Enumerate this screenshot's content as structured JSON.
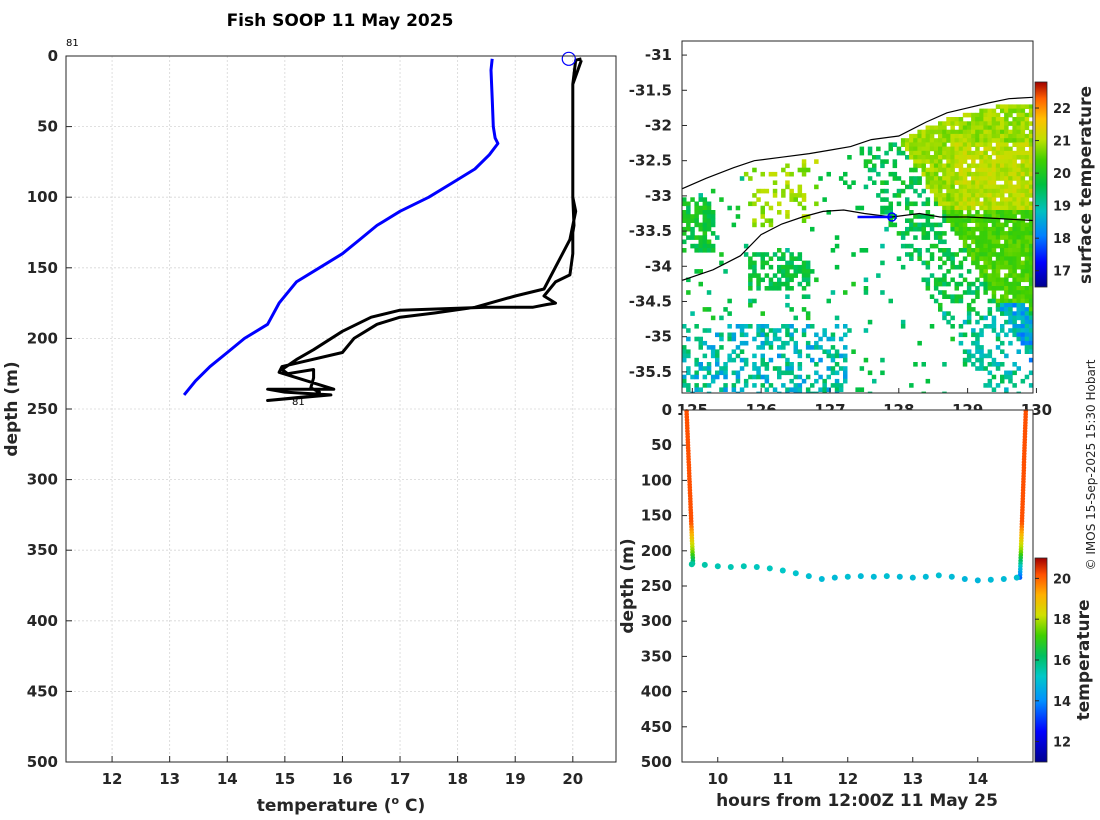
{
  "title": "Fish SOOP 11 May 2025",
  "credit": "© IMOS 15-Sep-2025 15:30 Hobart",
  "chart_data": [
    {
      "type": "line",
      "name": "profile",
      "xlabel": "temperature (",
      "xlabel_sup": "o",
      "xlabel_end": " C)",
      "ylabel": "depth (m)",
      "xlim": [
        11.2,
        20.75
      ],
      "ylim": [
        500,
        0
      ],
      "xticks": [
        "12",
        "13",
        "14",
        "15",
        "16",
        "17",
        "18",
        "19",
        "20"
      ],
      "yticks": [
        "0",
        "50",
        "100",
        "150",
        "200",
        "250",
        "300",
        "350",
        "400",
        "450",
        "500"
      ],
      "grid": true,
      "start_label": "81",
      "end_label": "81",
      "series": [
        {
          "name": "climatology",
          "color": "#0000ff",
          "x": [
            18.6,
            18.58,
            18.6,
            18.62,
            18.65,
            18.7,
            18.55,
            18.3,
            17.9,
            17.5,
            17.0,
            16.6,
            16.3,
            16.0,
            15.6,
            15.2,
            14.9,
            14.7,
            14.3,
            14.0,
            13.7,
            13.45,
            13.25
          ],
          "y": [
            2,
            10,
            30,
            50,
            58,
            62,
            70,
            80,
            90,
            100,
            110,
            120,
            130,
            140,
            150,
            160,
            175,
            190,
            200,
            210,
            220,
            230,
            240
          ]
        },
        {
          "name": "tow",
          "color": "#000000",
          "x": [
            20.15,
            20.05,
            20.0,
            20.0,
            20.0,
            20.02,
            20.0,
            20.0,
            20.0,
            19.95,
            19.7,
            19.5,
            19.7,
            19.55,
            19.3,
            18.5,
            17.0,
            16.5,
            16.0,
            15.5,
            15.2,
            14.95,
            15.05,
            15.5,
            15.5,
            15.45,
            15.6,
            15.45,
            14.7,
            15.8,
            15.0,
            14.7,
            15.85,
            14.9,
            14.95,
            16.0,
            16.2,
            16.6,
            17.0,
            17.6,
            18.3,
            19.0,
            19.5,
            19.95,
            20.05,
            20.0,
            20.0,
            20.0,
            20.0,
            20.15
          ],
          "y": [
            2,
            3,
            20,
            60,
            100,
            120,
            125,
            130,
            140,
            155,
            160,
            170,
            175,
            176,
            178,
            178,
            180,
            185,
            195,
            208,
            215,
            222,
            225,
            222,
            228,
            235,
            238,
            241,
            244,
            240,
            238,
            236,
            236,
            224,
            220,
            210,
            200,
            190,
            185,
            182,
            178,
            170,
            165,
            130,
            110,
            100,
            80,
            50,
            20,
            3
          ]
        }
      ],
      "marker": {
        "x": 19.93,
        "y": 2
      }
    },
    {
      "type": "heatmap",
      "name": "sst_map",
      "xlim": [
        124.85,
        129.95
      ],
      "ylim": [
        -35.8,
        -30.8
      ],
      "yticks": [
        "-31",
        "-31.5",
        "-32",
        "-32.5",
        "-33",
        "-33.5",
        "-34",
        "-34.5",
        "-35",
        "-35.5"
      ],
      "xticks": [
        "125",
        "126",
        "127",
        "128",
        "129",
        "130"
      ],
      "coast": {
        "lon": [
          124.85,
          125.2,
          125.6,
          125.9,
          126.3,
          126.7,
          127.0,
          127.3,
          127.6,
          128.0,
          128.4,
          128.7,
          129.0,
          129.3,
          129.6,
          129.95
        ],
        "lat": [
          -32.9,
          -32.75,
          -32.6,
          -32.5,
          -32.45,
          -32.4,
          -32.35,
          -32.3,
          -32.2,
          -32.15,
          -31.95,
          -31.82,
          -31.75,
          -31.68,
          -31.62,
          -31.6
        ]
      },
      "shelf": {
        "lon": [
          124.85,
          125.3,
          125.7,
          126.0,
          126.3,
          126.6,
          126.9,
          127.2,
          127.5,
          127.9,
          128.3,
          128.6,
          129.0,
          129.4,
          129.95
        ],
        "lat": [
          -34.2,
          -34.05,
          -33.85,
          -33.55,
          -33.4,
          -33.3,
          -33.22,
          -33.2,
          -33.25,
          -33.3,
          -33.25,
          -33.3,
          -33.3,
          -33.32,
          -33.35
        ]
      },
      "track": {
        "lon": [
          127.4,
          127.9
        ],
        "lat": [
          -33.3,
          -33.3
        ]
      },
      "track_marker": {
        "lon": 127.9,
        "lat": -33.3
      },
      "colorbar": {
        "label": "surface temperature",
        "ticks": [
          "17",
          "18",
          "19",
          "20",
          "21",
          "22"
        ],
        "range": [
          16.5,
          22.8
        ]
      }
    },
    {
      "type": "scatter",
      "name": "section",
      "xlabel": "hours from 12:00Z 11 May 25",
      "ylabel": "depth (m)",
      "xlim": [
        9.45,
        14.85
      ],
      "ylim": [
        500,
        0
      ],
      "xticks": [
        "10",
        "11",
        "12",
        "13",
        "14"
      ],
      "yticks": [
        "0",
        "50",
        "100",
        "150",
        "200",
        "250",
        "300",
        "350",
        "400",
        "450",
        "500"
      ],
      "colorbar": {
        "label": "temperature",
        "ticks": [
          "12",
          "14",
          "16",
          "18",
          "20"
        ],
        "range": [
          11,
          21
        ]
      },
      "bottom": {
        "t": [
          9.6,
          9.8,
          10.0,
          10.2,
          10.4,
          10.6,
          10.8,
          11.0,
          11.2,
          11.4,
          11.6,
          11.8,
          12.0,
          12.2,
          12.4,
          12.6,
          12.8,
          13.0,
          13.2,
          13.4,
          13.6,
          13.8,
          14.0,
          14.2,
          14.4,
          14.6
        ],
        "depth": [
          219,
          220,
          222,
          223,
          222,
          223,
          225,
          228,
          232,
          236,
          240,
          238,
          237,
          236,
          237,
          236,
          237,
          238,
          237,
          235,
          237,
          240,
          242,
          241,
          240,
          238
        ],
        "temp": [
          15.6,
          15.5,
          15.4,
          15.4,
          15.4,
          15.3,
          15.3,
          15.2,
          15.1,
          15.0,
          14.9,
          14.9,
          15.0,
          14.9,
          14.9,
          15.0,
          14.9,
          14.9,
          14.9,
          15.0,
          14.9,
          14.8,
          14.8,
          14.9,
          14.9,
          15.0
        ]
      }
    }
  ]
}
